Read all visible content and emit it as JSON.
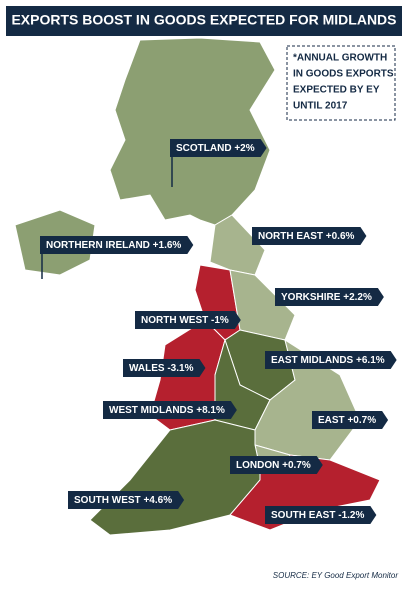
{
  "header": {
    "title": "EXPORTS BOOST IN GOODS EXPECTED FOR MIDLANDS"
  },
  "note": [
    "*ANNUAL GROWTH",
    "IN GOODS EXPORTS",
    "EXPECTED BY EY",
    "UNTIL 2017"
  ],
  "labels": [
    {
      "region": "SCOTLAND",
      "change": "+2%"
    },
    {
      "region": "NORTHERN IRELAND",
      "change": "+1.6%"
    },
    {
      "region": "NORTH EAST",
      "change": "+0.6%"
    },
    {
      "region": "YORKSHIRE",
      "change": "+2.2%"
    },
    {
      "region": "NORTH WEST",
      "change": "-1%"
    },
    {
      "region": "WALES",
      "change": "-3.1%"
    },
    {
      "region": "EAST MIDLANDS",
      "change": "+6.1%"
    },
    {
      "region": "WEST MIDLANDS",
      "change": "+8.1%"
    },
    {
      "region": "EAST",
      "change": "+0.7%"
    },
    {
      "region": "LONDON",
      "change": "+0.7%"
    },
    {
      "region": "SOUTH WEST",
      "change": "+4.6%"
    },
    {
      "region": "SOUTH EAST",
      "change": "-1.2%"
    }
  ],
  "source": "SOURCE: EY Good Export Monitor"
}
